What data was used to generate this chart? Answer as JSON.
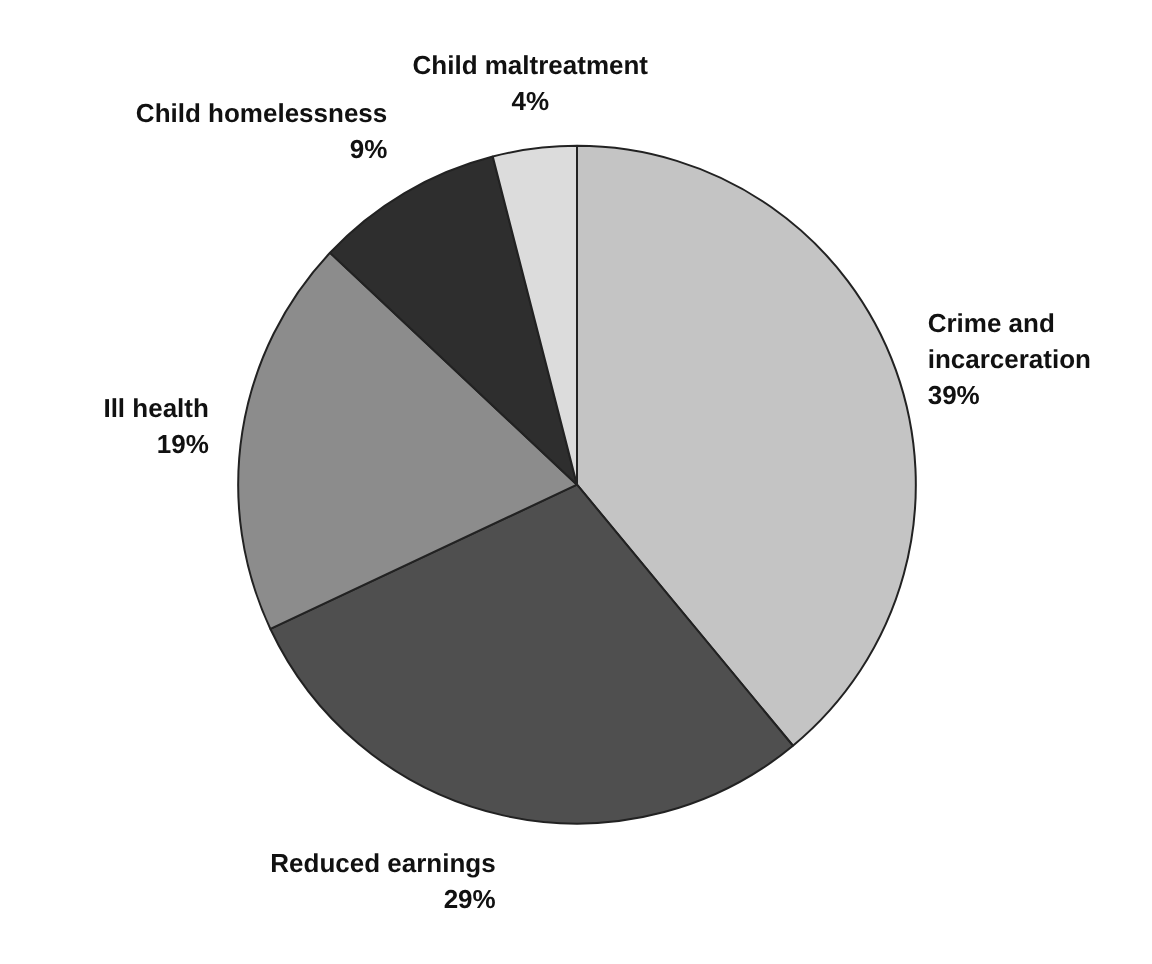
{
  "chart_data": {
    "type": "pie",
    "categories": [
      "Crime and incarceration",
      "Reduced earnings",
      "Ill health",
      "Child homelessness",
      "Child maltreatment"
    ],
    "values": [
      39,
      29,
      19,
      9,
      4
    ],
    "value_labels": [
      "39%",
      "29%",
      "19%",
      "9%",
      "4%"
    ],
    "colors": [
      "#c4c4c4",
      "#4f4f4f",
      "#8c8c8c",
      "#2e2e2e",
      "#dcdcdc"
    ]
  }
}
